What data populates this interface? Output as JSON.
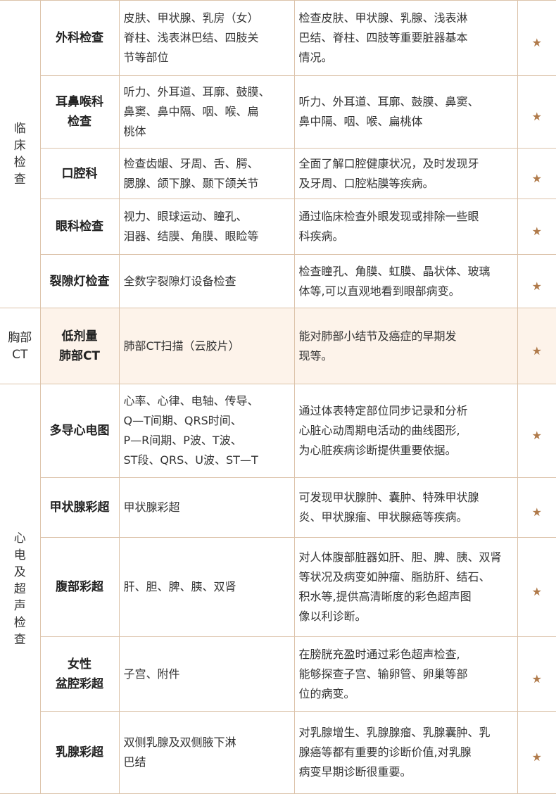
{
  "colors": {
    "border": "#dcc3aa",
    "star": "#b07a4a",
    "highlight": "#fdf3ea"
  },
  "star_icon": "star-icon",
  "groups": [
    {
      "category": "临\n床\n检\n查",
      "rows": [
        {
          "item": "外科检查",
          "content": "皮肤、甲状腺、乳房（女）\n脊柱、浅表淋巴结、四肢关\n节等部位",
          "meaning": "检查皮肤、甲状腺、乳腺、浅表淋\n巴结、脊柱、四肢等重要脏器基本\n情况。",
          "star": "★"
        },
        {
          "item": "耳鼻喉科\n检查",
          "content": "听力、外耳道、耳廓、鼓膜、\n鼻窦、鼻中隔、咽、喉、扁\n桃体",
          "meaning": "听力、外耳道、耳廓、鼓膜、鼻窦、\n鼻中隔、咽、喉、扁桃体",
          "star": "★"
        },
        {
          "item": "口腔科",
          "content": "检查齿龈、牙周、舌、腭、\n腮腺、颌下腺、颞下颌关节",
          "meaning": "全面了解口腔健康状况，及时发现牙\n及牙周、口腔粘膜等疾病。",
          "star": "★"
        },
        {
          "item": "眼科检查",
          "content": "视力、眼球运动、瞳孔、\n泪器、结膜、角膜、眼睑等",
          "meaning": "通过临床检查外眼发现或排除一些眼\n科疾病。",
          "star": "★"
        },
        {
          "item": "裂隙灯检查",
          "content": "全数字裂隙灯设备检查",
          "meaning": "检查瞳孔、角膜、虹膜、晶状体、玻璃\n体等,可以直观地看到眼部病变。",
          "star": "★"
        }
      ]
    },
    {
      "category": "胸部\nCT",
      "highlight": true,
      "rows": [
        {
          "item": "低剂量\n肺部CT",
          "content": "肺部CT扫描（云胶片）",
          "meaning": "能对肺部小结节及癌症的早期发\n现等。",
          "star": "★"
        }
      ]
    },
    {
      "category": "心\n电\n及\n超\n声\n检\n查",
      "rows": [
        {
          "item": "多导心电图",
          "content": "心率、心律、电轴、传导、\nQ—T间期、QRS时间、\nP—R间期、P波、T波、\nST段、QRS、U波、ST—T",
          "meaning": "通过体表特定部位同步记录和分析\n心脏心动周期电活动的曲线图形,\n为心脏疾病诊断提供重要依据。",
          "star": "★"
        },
        {
          "item": "甲状腺彩超",
          "content": "甲状腺彩超",
          "meaning": "可发现甲状腺肿、囊肿、特殊甲状腺\n炎、甲状腺瘤、甲状腺癌等疾病。",
          "star": "★"
        },
        {
          "item": "腹部彩超",
          "content": "肝、胆、脾、胰、双肾",
          "meaning": "对人体腹部脏器如肝、胆、脾、胰、双肾\n等状况及病变如肿瘤、脂肪肝、结石、\n积水等,提供高清晰度的彩色超声图\n像以利诊断。",
          "star": "★"
        },
        {
          "item": "女性\n盆腔彩超",
          "content": "子宫、附件",
          "meaning": "在膀胱充盈时通过彩色超声检查,\n能够探查子宫、输卵管、卵巢等部\n位的病变。",
          "star": "★"
        },
        {
          "item": "乳腺彩超",
          "content": "双侧乳腺及双侧腋下淋\n巴结",
          "meaning": "对乳腺增生、乳腺腺瘤、乳腺囊肿、乳\n腺癌等都有重要的诊断价值,对乳腺\n病变早期诊断很重要。",
          "star": "★"
        }
      ]
    }
  ]
}
